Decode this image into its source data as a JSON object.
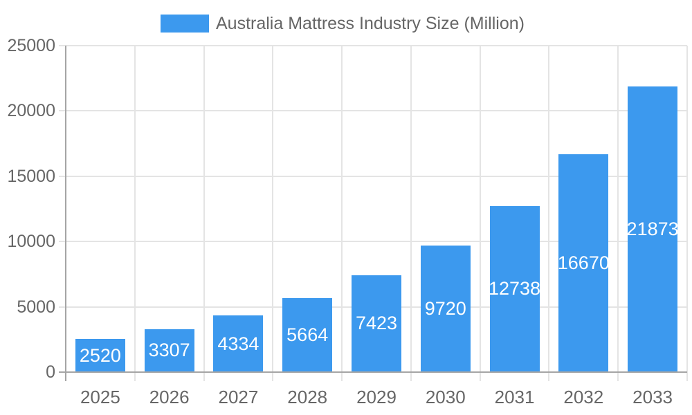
{
  "chart_data": {
    "type": "bar",
    "title": "Australia Mattress Industry Size (Million)",
    "categories": [
      "2025",
      "2026",
      "2027",
      "2028",
      "2029",
      "2030",
      "2031",
      "2032",
      "2033"
    ],
    "values": [
      2520,
      3307,
      4334,
      5664,
      7423,
      9720,
      12738,
      16670,
      21873
    ],
    "series_name": "Australia Mattress Industry Size (Million)",
    "xlabel": "",
    "ylabel": "",
    "ylim": [
      0,
      25000
    ],
    "yticks": [
      0,
      5000,
      10000,
      15000,
      20000,
      25000
    ],
    "grid": true,
    "legend_position": "top-center",
    "data_labels": "inside-center-white",
    "colors": {
      "bar": "#3c99ee",
      "axis": "#a5a5a5",
      "grid": "#e4e4e4",
      "text": "#666666",
      "data_label": "#ffffff"
    }
  }
}
